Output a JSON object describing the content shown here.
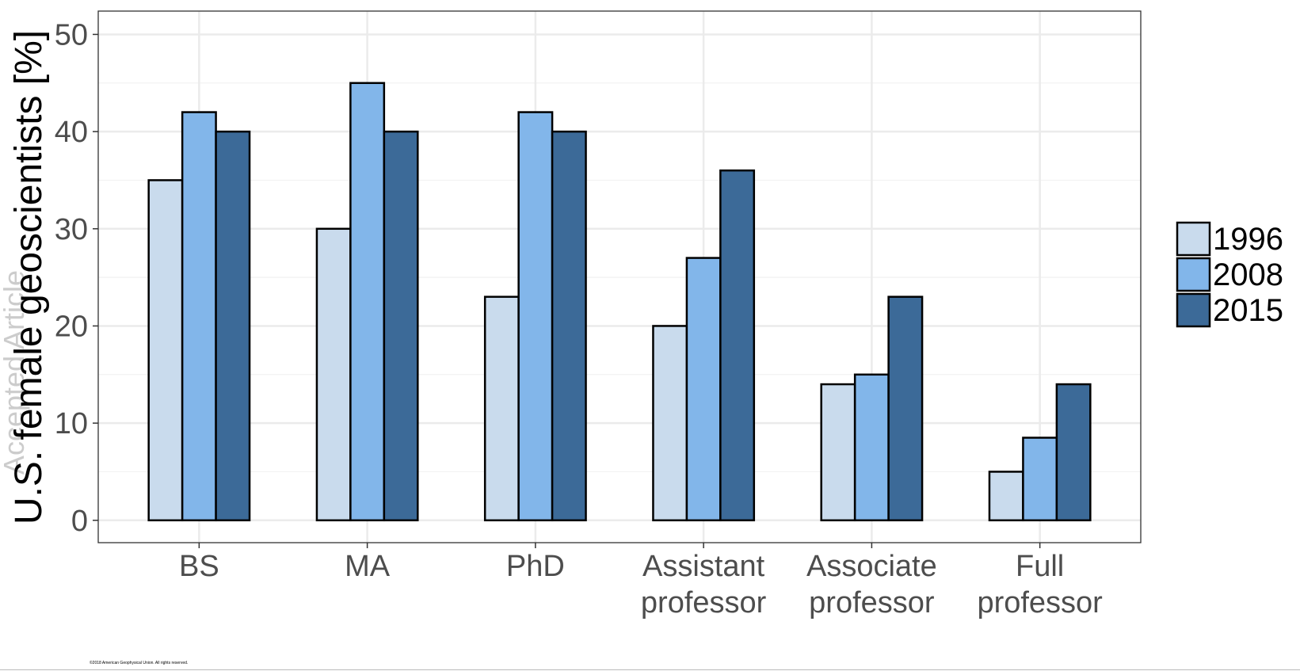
{
  "chart_data": {
    "type": "bar",
    "ylabel": "U.S. female geoscientists [%]",
    "ylim": [
      -2.3,
      52.4
    ],
    "yticks": [
      0,
      10,
      20,
      30,
      40,
      50
    ],
    "categories": [
      [
        "BS"
      ],
      [
        "MA"
      ],
      [
        "PhD"
      ],
      [
        "Assistant",
        "professor"
      ],
      [
        "Associate",
        "professor"
      ],
      [
        "Full",
        "professor"
      ]
    ],
    "series": [
      {
        "name": "1996",
        "color": "#c9dbed",
        "values": [
          35,
          30,
          23,
          20,
          14,
          5
        ]
      },
      {
        "name": "2008",
        "color": "#82b6ea",
        "values": [
          42,
          45,
          42,
          27,
          15,
          8.5
        ]
      },
      {
        "name": "2015",
        "color": "#3c6a98",
        "values": [
          40,
          40,
          40,
          36,
          23,
          14
        ]
      }
    ],
    "grid": true,
    "legend_position": "right"
  },
  "watermark": "Accepted Article",
  "copyright": "©2018 American Geophysical Union. All rights reserved."
}
